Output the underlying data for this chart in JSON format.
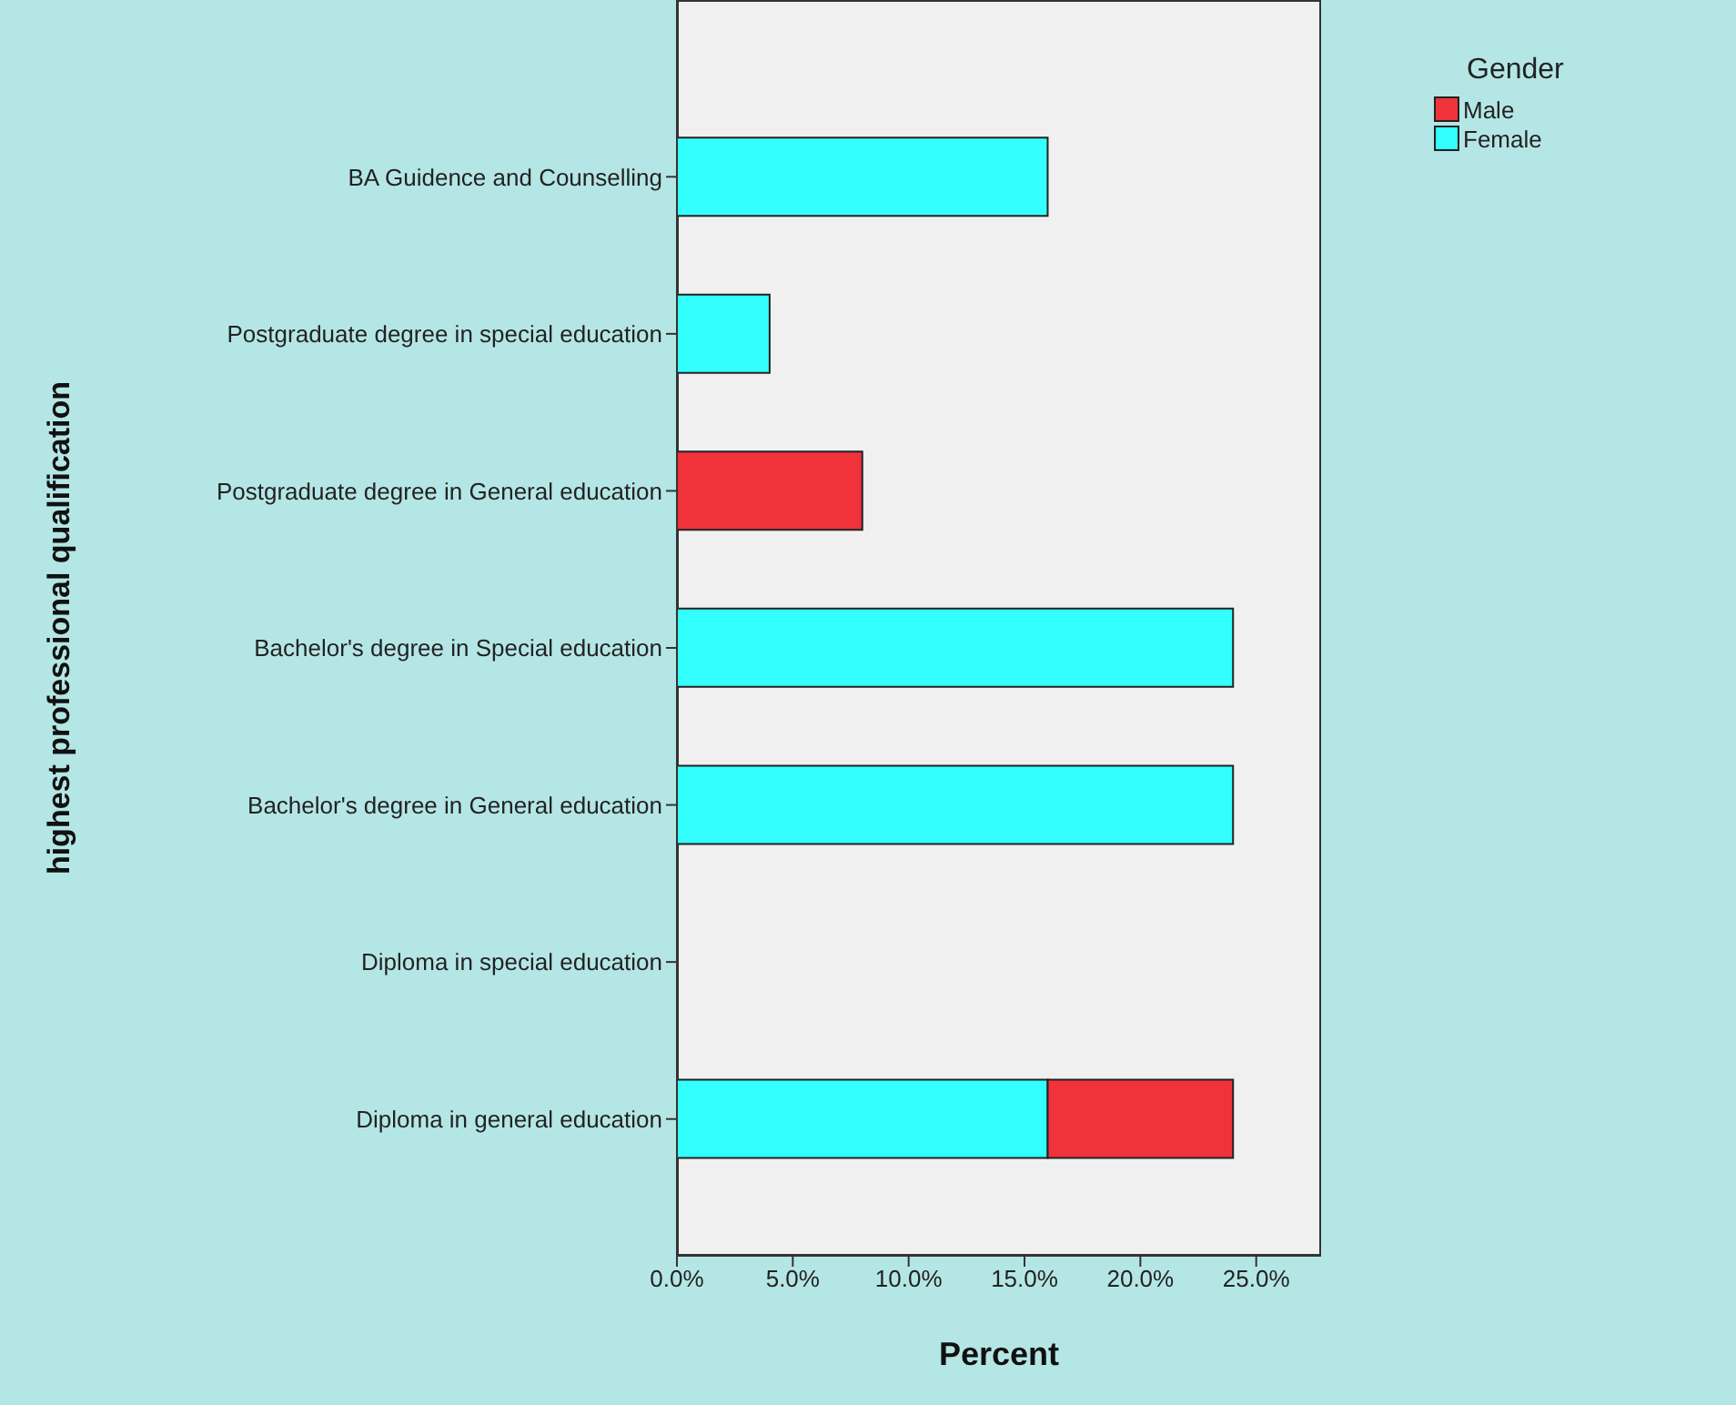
{
  "chart_data": {
    "type": "bar",
    "orientation": "horizontal",
    "stacked": true,
    "xlabel": "Percent",
    "ylabel": "highest professional qualification",
    "legend_title": "Gender",
    "legend": "top right",
    "grid": false,
    "categories": [
      "BA Guidence and Counselling",
      "Postgraduate degree in special education",
      "Postgraduate degree in General education",
      "Bachelor's degree in Special education",
      "Bachelor's degree in General education",
      "Diploma in special education",
      "Diploma in general education"
    ],
    "series": [
      {
        "name": "Female",
        "color": "#33ffff",
        "values": [
          16,
          4,
          0,
          24,
          24,
          0,
          16
        ]
      },
      {
        "name": "Male",
        "color": "#f0323a",
        "values": [
          0,
          0,
          8,
          0,
          0,
          0,
          8
        ]
      }
    ],
    "xlim": [
      0,
      27.8
    ],
    "xticks": [
      {
        "value": 0,
        "label": "0.0%"
      },
      {
        "value": 5,
        "label": "5.0%"
      },
      {
        "value": 10,
        "label": "10.0%"
      },
      {
        "value": 15,
        "label": "15.0%"
      },
      {
        "value": 20,
        "label": "20.0%"
      },
      {
        "value": 25,
        "label": "25.0%"
      }
    ]
  }
}
